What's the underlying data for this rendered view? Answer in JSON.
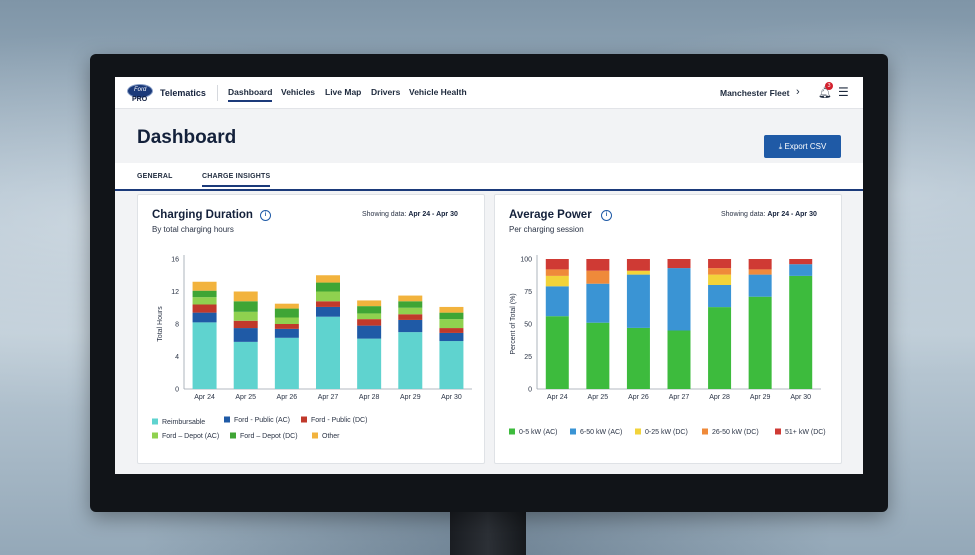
{
  "nav": {
    "logo_text": "Ford",
    "pro_text": "PRO",
    "brand": "Telematics",
    "items": [
      {
        "label": "Dashboard",
        "active": true
      },
      {
        "label": "Vehicles"
      },
      {
        "label": "Live Map"
      },
      {
        "label": "Drivers"
      },
      {
        "label": "Vehicle Health"
      }
    ],
    "fleet": "Manchester Fleet",
    "notification_count": "3"
  },
  "page": {
    "title": "Dashboard",
    "export_label": "Export CSV"
  },
  "tabs": [
    {
      "label": "GENERAL"
    },
    {
      "label": "CHARGE INSIGHTS",
      "active": true
    }
  ],
  "chart_data": [
    {
      "type": "bar",
      "stacked": true,
      "title": "Charging Duration",
      "subtitle": "By total charging hours",
      "showing_label": "Showing data:",
      "showing_range": "Apr 24 - Apr 30",
      "ylabel": "Total Hours",
      "ylim": [
        0,
        16
      ],
      "yticks": [
        0,
        4,
        8,
        12,
        16
      ],
      "categories": [
        "Apr 24",
        "Apr 25",
        "Apr 26",
        "Apr 27",
        "Apr 28",
        "Apr 29",
        "Apr 30"
      ],
      "series": [
        {
          "name": "Reimbursable",
          "color": "#5fd3cf",
          "values": [
            8.2,
            5.8,
            6.3,
            8.9,
            6.2,
            7.0,
            5.9
          ]
        },
        {
          "name": "Ford - Public (AC)",
          "color": "#1f5aa6",
          "values": [
            1.2,
            1.7,
            1.1,
            1.2,
            1.6,
            1.5,
            1.0
          ]
        },
        {
          "name": "Ford - Public (DC)",
          "color": "#c0392b",
          "values": [
            1.0,
            0.9,
            0.6,
            0.7,
            0.8,
            0.7,
            0.6
          ]
        },
        {
          "name": "Ford – Depot (AC)",
          "color": "#8fd14f",
          "values": [
            0.9,
            1.1,
            0.8,
            1.2,
            0.7,
            0.8,
            1.1
          ]
        },
        {
          "name": "Ford – Depot (DC)",
          "color": "#3fa535",
          "values": [
            0.8,
            1.3,
            1.1,
            1.1,
            0.9,
            0.8,
            0.8
          ]
        },
        {
          "name": "Other",
          "color": "#f2b33d",
          "values": [
            1.1,
            1.2,
            0.6,
            0.9,
            0.7,
            0.7,
            0.7
          ]
        }
      ],
      "legend_position": "bottom-left"
    },
    {
      "type": "bar",
      "stacked": true,
      "title": "Average Power",
      "subtitle": "Per charging session",
      "showing_label": "Showing data:",
      "showing_range": "Apr 24 - Apr 30",
      "ylabel": "Percent of Total (%)",
      "ylim": [
        0,
        100
      ],
      "yticks": [
        0,
        25,
        50,
        75,
        100
      ],
      "categories": [
        "Apr 24",
        "Apr 25",
        "Apr 26",
        "Apr 27",
        "Apr 28",
        "Apr 29",
        "Apr 30"
      ],
      "series": [
        {
          "name": "0-5 kW (AC)",
          "color": "#3dbb3d",
          "values": [
            56,
            51,
            47,
            45,
            63,
            71,
            87
          ]
        },
        {
          "name": "6-50 kW (AC)",
          "color": "#3a94d4",
          "values": [
            23,
            30,
            41,
            48,
            17,
            17,
            9
          ]
        },
        {
          "name": "0-25 kW (DC)",
          "color": "#f2d33a",
          "values": [
            8,
            0,
            3,
            0,
            8,
            0,
            0
          ]
        },
        {
          "name": "26-50 kW (DC)",
          "color": "#ef8a3a",
          "values": [
            5,
            10,
            0,
            0,
            5,
            4,
            0
          ]
        },
        {
          "name": "51+ kW (DC)",
          "color": "#cf3a34",
          "values": [
            8,
            9,
            9,
            7,
            7,
            8,
            4
          ]
        }
      ],
      "legend_position": "bottom"
    }
  ]
}
